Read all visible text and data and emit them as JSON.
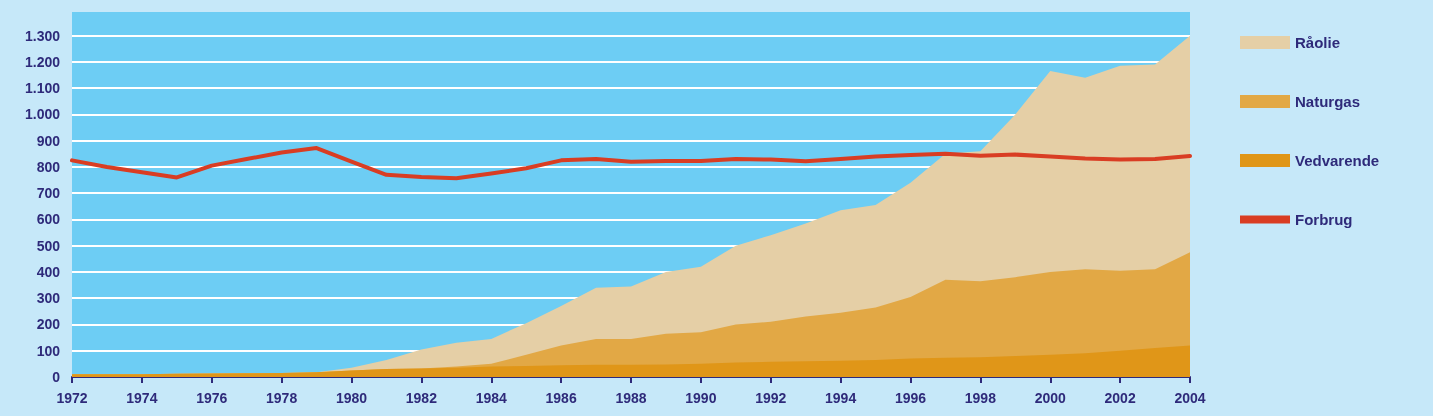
{
  "chart_data": {
    "type": "area",
    "stacked": true,
    "x": [
      1972,
      1973,
      1974,
      1975,
      1976,
      1977,
      1978,
      1979,
      1980,
      1981,
      1982,
      1983,
      1984,
      1985,
      1986,
      1987,
      1988,
      1989,
      1990,
      1991,
      1992,
      1993,
      1994,
      1995,
      1996,
      1997,
      1998,
      1999,
      2000,
      2001,
      2002,
      2003,
      2004
    ],
    "series": [
      {
        "name": "Vedvarende",
        "color": "#e09618",
        "values": [
          10,
          10,
          10,
          12,
          13,
          14,
          15,
          18,
          25,
          30,
          32,
          35,
          40,
          42,
          45,
          47,
          47,
          48,
          50,
          55,
          58,
          60,
          62,
          65,
          70,
          73,
          75,
          80,
          85,
          90,
          100,
          110,
          120
        ]
      },
      {
        "name": "Naturgas",
        "color": "#e2a845",
        "values": [
          0,
          0,
          0,
          0,
          0,
          0,
          0,
          0,
          0,
          0,
          0,
          5,
          10,
          43,
          75,
          98,
          98,
          117,
          120,
          145,
          152,
          170,
          183,
          200,
          235,
          297,
          290,
          300,
          315,
          320,
          305,
          300,
          355
        ]
      },
      {
        "name": "Råolie",
        "color": "#e5cfa6",
        "values": [
          0,
          0,
          0,
          0,
          0,
          0,
          0,
          0,
          10,
          35,
          73,
          90,
          95,
          120,
          150,
          195,
          200,
          235,
          250,
          300,
          330,
          355,
          390,
          390,
          435,
          480,
          495,
          620,
          765,
          730,
          780,
          780,
          825
        ]
      },
      {
        "name": "Forbrug",
        "type": "line",
        "color": "#d93d23",
        "values": [
          825,
          800,
          780,
          760,
          805,
          830,
          855,
          872,
          820,
          770,
          762,
          757,
          775,
          795,
          825,
          830,
          820,
          823,
          823,
          830,
          828,
          822,
          830,
          840,
          845,
          850,
          843,
          847,
          840,
          832,
          828,
          830,
          842
        ]
      }
    ],
    "xlim": [
      1972,
      2004
    ],
    "xticks": [
      1972,
      1974,
      1976,
      1978,
      1980,
      1982,
      1984,
      1986,
      1988,
      1990,
      1992,
      1994,
      1996,
      1998,
      2000,
      2002,
      2004
    ],
    "ylim": [
      0,
      1390
    ],
    "yticks": [
      0,
      100,
      200,
      300,
      400,
      500,
      600,
      700,
      800,
      900,
      {
        "value": 1000,
        "label": "1.000"
      },
      {
        "value": 1100,
        "label": "1.100"
      },
      {
        "value": 1200,
        "label": "1.200"
      },
      {
        "value": 1300,
        "label": "1.300"
      }
    ],
    "grid": "y",
    "legend": "right"
  }
}
